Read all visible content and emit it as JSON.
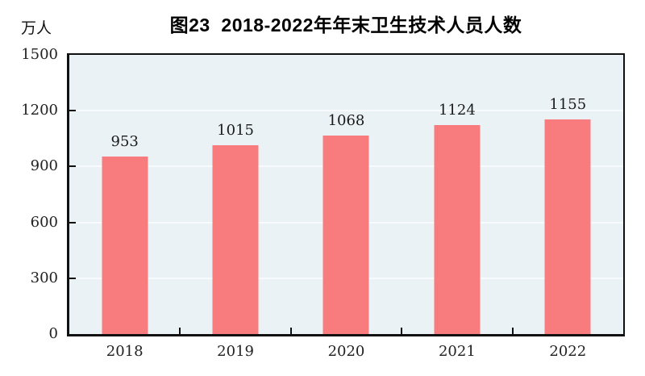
{
  "title": "图23  2018-2022年年末卫生技术人员人数",
  "unit_label": "万人",
  "colors": {
    "bar": "#F87C7D",
    "plot_background": "#EAF2F6",
    "gridline": "#F8FBFD",
    "axis": "#111111",
    "figure_background": "#FFFFFF"
  },
  "chart_data": {
    "type": "bar",
    "title": "图23  2018-2022年年末卫生技术人员人数",
    "categories": [
      "2018",
      "2019",
      "2020",
      "2021",
      "2022"
    ],
    "values": [
      953,
      1015,
      1068,
      1124,
      1155
    ],
    "xlabel": "",
    "ylabel": "万人",
    "ylim": [
      0,
      1500
    ],
    "yticks": [
      0,
      300,
      600,
      900,
      1200,
      1500
    ],
    "grid": true,
    "legend": false,
    "bar_color": "#F87C7D",
    "value_labels_shown": true
  }
}
